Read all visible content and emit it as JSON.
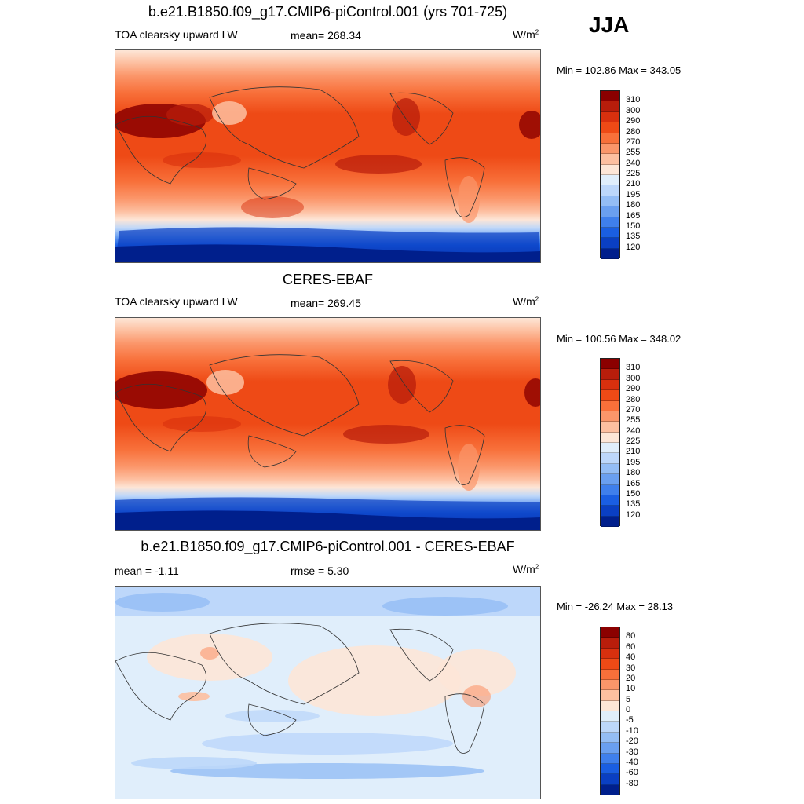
{
  "season": "JJA",
  "panels": [
    {
      "title": "b.e21.B1850.f09_g17.CMIP6-piControl.001 (yrs 701-725)",
      "left_label": "TOA clearsky upward LW",
      "center_label": "mean= 268.34",
      "units_base": "W/m",
      "units_exp": "2",
      "minmax": "Min = 102.86 Max = 343.05"
    },
    {
      "title": "CERES-EBAF",
      "left_label": "TOA clearsky upward LW",
      "center_label": "mean= 269.45",
      "units_base": "W/m",
      "units_exp": "2",
      "minmax": "Min = 100.56 Max = 348.02"
    },
    {
      "title": "b.e21.B1850.f09_g17.CMIP6-piControl.001 - CERES-EBAF",
      "left_label": "mean =  -1.11",
      "center_label": "rmse =   5.30",
      "units_base": "W/m",
      "units_exp": "2",
      "minmax": "Min = -26.24 Max =  28.13"
    }
  ],
  "colorbars": {
    "absolute": {
      "levels": [
        "310",
        "300",
        "290",
        "280",
        "270",
        "255",
        "240",
        "225",
        "210",
        "195",
        "180",
        "165",
        "150",
        "135",
        "120"
      ],
      "colors": [
        "#8b0000",
        "#b81d0b",
        "#d8300e",
        "#ee4a16",
        "#f8703a",
        "#fb966a",
        "#fdbfa0",
        "#fde6d7",
        "#e0eefb",
        "#bdd7fa",
        "#94bdf5",
        "#6a9ff0",
        "#3f7fec",
        "#1a5ee2",
        "#0a3fc2",
        "#001f8c"
      ]
    },
    "difference": {
      "levels": [
        "80",
        "60",
        "40",
        "30",
        "20",
        "10",
        "5",
        "0",
        "-5",
        "-10",
        "-20",
        "-30",
        "-40",
        "-60",
        "-80"
      ],
      "colors": [
        "#8b0000",
        "#b81d0b",
        "#d8300e",
        "#ee4a16",
        "#f8703a",
        "#fb966a",
        "#fdbfa0",
        "#fde6d7",
        "#e0eefb",
        "#bdd7fa",
        "#94bdf5",
        "#6a9ff0",
        "#3f7fec",
        "#1a5ee2",
        "#0a3fc2",
        "#001f8c"
      ]
    }
  },
  "chart_data": [
    {
      "type": "heatmap",
      "title": "b.e21.B1850.f09_g17.CMIP6-piControl.001 (yrs 701-725)",
      "variable": "TOA clearsky upward LW",
      "units": "W/m2",
      "mean": 268.34,
      "min": 102.86,
      "max": 343.05,
      "contour_levels": [
        120,
        135,
        150,
        165,
        180,
        195,
        210,
        225,
        240,
        255,
        270,
        280,
        290,
        300,
        310
      ]
    },
    {
      "type": "heatmap",
      "title": "CERES-EBAF",
      "variable": "TOA clearsky upward LW",
      "units": "W/m2",
      "mean": 269.45,
      "min": 100.56,
      "max": 348.02,
      "contour_levels": [
        120,
        135,
        150,
        165,
        180,
        195,
        210,
        225,
        240,
        255,
        270,
        280,
        290,
        300,
        310
      ]
    },
    {
      "type": "heatmap",
      "title": "b.e21.B1850.f09_g17.CMIP6-piControl.001 - CERES-EBAF",
      "units": "W/m2",
      "mean": -1.11,
      "rmse": 5.3,
      "min": -26.24,
      "max": 28.13,
      "contour_levels": [
        -80,
        -60,
        -40,
        -30,
        -20,
        -10,
        -5,
        0,
        5,
        10,
        20,
        30,
        40,
        60,
        80
      ]
    }
  ]
}
